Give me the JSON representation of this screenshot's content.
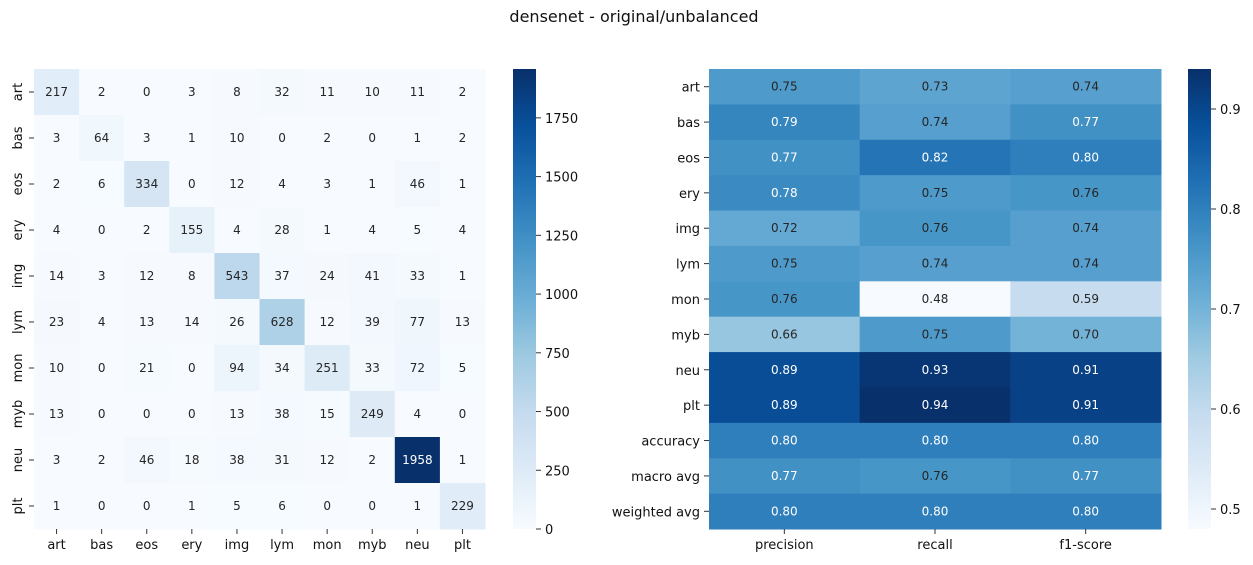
{
  "title": "densenet - original/unbalanced",
  "chart_data": [
    {
      "type": "heatmap",
      "name": "confusion-matrix",
      "row_labels": [
        "art",
        "bas",
        "eos",
        "ery",
        "img",
        "lym",
        "mon",
        "myb",
        "neu",
        "plt"
      ],
      "col_labels": [
        "art",
        "bas",
        "eos",
        "ery",
        "img",
        "lym",
        "mon",
        "myb",
        "neu",
        "plt"
      ],
      "values": [
        [
          217,
          2,
          0,
          3,
          8,
          32,
          11,
          10,
          11,
          2
        ],
        [
          3,
          64,
          3,
          1,
          10,
          0,
          2,
          0,
          1,
          2
        ],
        [
          2,
          6,
          334,
          0,
          12,
          4,
          3,
          1,
          46,
          1
        ],
        [
          4,
          0,
          2,
          155,
          4,
          28,
          1,
          4,
          5,
          4
        ],
        [
          14,
          3,
          12,
          8,
          543,
          37,
          24,
          41,
          33,
          1
        ],
        [
          23,
          4,
          13,
          14,
          26,
          628,
          12,
          39,
          77,
          13
        ],
        [
          10,
          0,
          21,
          0,
          94,
          34,
          251,
          33,
          72,
          5
        ],
        [
          13,
          0,
          0,
          0,
          13,
          38,
          15,
          249,
          4,
          0
        ],
        [
          3,
          2,
          46,
          18,
          38,
          31,
          12,
          2,
          1958,
          1
        ],
        [
          1,
          0,
          0,
          1,
          5,
          6,
          0,
          0,
          1,
          229
        ]
      ],
      "value_format": "integer",
      "colormap": "Blues",
      "vmin": 0,
      "vmax": 1958,
      "colorbar_ticks": [
        0,
        250,
        500,
        750,
        1000,
        1250,
        1500,
        1750
      ]
    },
    {
      "type": "heatmap",
      "name": "classification-report",
      "row_labels": [
        "art",
        "bas",
        "eos",
        "ery",
        "img",
        "lym",
        "mon",
        "myb",
        "neu",
        "plt",
        "accuracy",
        "macro avg",
        "weighted avg"
      ],
      "col_labels": [
        "precision",
        "recall",
        "f1-score"
      ],
      "values": [
        [
          0.75,
          0.73,
          0.74
        ],
        [
          0.79,
          0.74,
          0.77
        ],
        [
          0.77,
          0.82,
          0.8
        ],
        [
          0.78,
          0.75,
          0.76
        ],
        [
          0.72,
          0.76,
          0.74
        ],
        [
          0.75,
          0.74,
          0.74
        ],
        [
          0.76,
          0.48,
          0.59
        ],
        [
          0.66,
          0.75,
          0.7
        ],
        [
          0.89,
          0.93,
          0.91
        ],
        [
          0.89,
          0.94,
          0.91
        ],
        [
          0.8,
          0.8,
          0.8
        ],
        [
          0.77,
          0.76,
          0.77
        ],
        [
          0.8,
          0.8,
          0.8
        ]
      ],
      "value_format": "2 decimals",
      "colormap": "Blues",
      "vmin": 0.48,
      "vmax": 0.94,
      "colorbar_ticks": [
        0.5,
        0.6,
        0.7,
        0.8,
        0.9
      ]
    }
  ]
}
